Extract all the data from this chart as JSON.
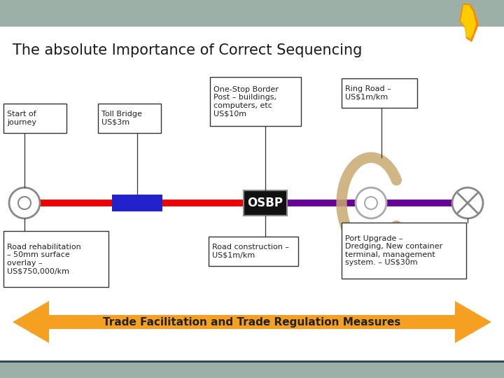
{
  "title": "The absolute Importance of Correct Sequencing",
  "header_color": "#9db0a8",
  "footer_color": "#9db0a8",
  "main_bg": "#ffffff",
  "road_red": "#ee0000",
  "road_purple": "#660099",
  "bridge_blue": "#2222cc",
  "osbp_bg": "#111111",
  "osbp_text": "#ffffff",
  "osbp_label": "OSBP",
  "arrow_orange": "#f5a020",
  "arrow_text": "Trade Facilitation and Trade Regulation Measures",
  "ring_color": "#c8a870",
  "circle_color": "#aaaaaa",
  "line_color": "#333333",
  "text_color": "#222222"
}
